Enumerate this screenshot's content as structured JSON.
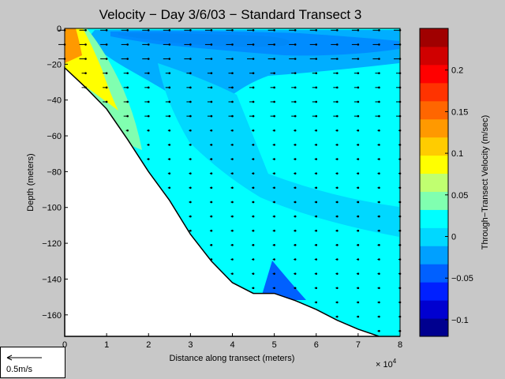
{
  "chart_data": {
    "type": "heatmap",
    "title": "Velocity − Day 3/6/03 − Standard Transect 3",
    "xlabel": "Distance along transect (meters)",
    "ylabel": "Depth (meters)",
    "x_exponent_label": "× 10",
    "x_exponent_power": "4",
    "xlim": [
      0,
      8
    ],
    "ylim": [
      -172,
      0
    ],
    "xticks": [
      "0",
      "1",
      "2",
      "3",
      "4",
      "5",
      "6",
      "7",
      "8"
    ],
    "yticks": [
      "0",
      "−20",
      "−40",
      "−60",
      "−80",
      "−100",
      "−120",
      "−140",
      "−160"
    ],
    "colorbar": {
      "label": "Through−Transect Velocity (m/sec)",
      "range": [
        -0.12,
        0.25
      ],
      "ticks": [
        "−0.1",
        "−0.05",
        "0",
        "0.05",
        "0.1",
        "0.15",
        "0.2"
      ],
      "colors": [
        "#00008f",
        "#0000d0",
        "#0020ff",
        "#0060ff",
        "#00a0ff",
        "#00d8ff",
        "#00ffff",
        "#80ffb0",
        "#c0ff70",
        "#ffff00",
        "#ffcc00",
        "#ff9900",
        "#ff6600",
        "#ff3300",
        "#ff0000",
        "#d00000",
        "#a00000"
      ]
    },
    "bottom_profile": {
      "x": [
        0,
        0.5,
        1,
        1.5,
        2,
        2.5,
        3,
        3.5,
        4,
        4.5,
        5,
        5.5,
        6,
        6.5,
        7,
        7.5,
        8
      ],
      "depth": [
        -22,
        -33,
        -45,
        -62,
        -80,
        -96,
        -115,
        -130,
        -142,
        -148,
        -148,
        -152,
        -157,
        -163,
        -168,
        -172,
        -172
      ]
    },
    "scale_label": "0.5m/s",
    "colors": {
      "background": "#c8c8c8",
      "fill_base": "#00ffff"
    }
  }
}
